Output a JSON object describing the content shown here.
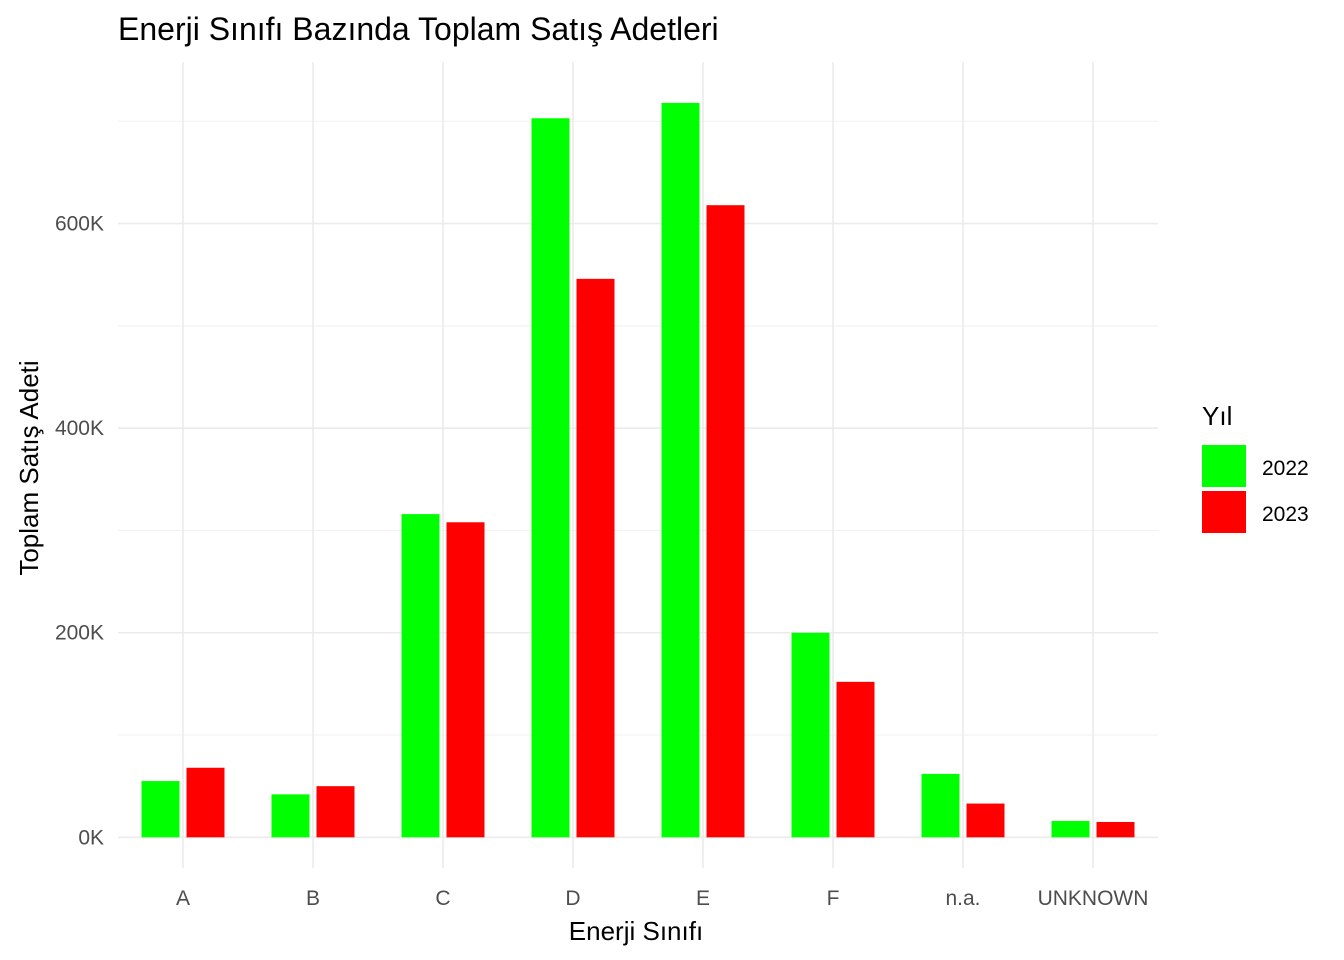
{
  "chart_data": {
    "type": "bar",
    "title": "Enerji Sınıfı Bazında Toplam Satış Adetleri",
    "xlabel": "Enerji Sınıfı",
    "ylabel": "Toplam Satış Adeti",
    "categories": [
      "A",
      "B",
      "C",
      "D",
      "E",
      "F",
      "n.a.",
      "UNKNOWN"
    ],
    "series": [
      {
        "name": "2022",
        "color": "#00ff00",
        "values": [
          55000,
          42000,
          316000,
          703000,
          718000,
          200000,
          62000,
          16000
        ]
      },
      {
        "name": "2023",
        "color": "#ff0000",
        "values": [
          68000,
          50000,
          308000,
          546000,
          618000,
          152000,
          33000,
          15000
        ]
      }
    ],
    "ylim": [
      -30000,
      758000
    ],
    "yticks": [
      0,
      200000,
      400000,
      600000
    ],
    "ytick_labels": [
      "0K",
      "200K",
      "400K",
      "600K"
    ],
    "grid": true,
    "legend": {
      "title": "Yıl",
      "position": "right"
    }
  }
}
